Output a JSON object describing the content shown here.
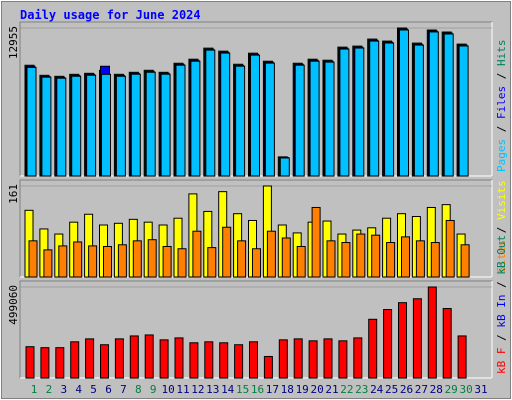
{
  "title": "Daily usage for June 2024",
  "legend_separator": " / ",
  "categories": [
    "1",
    "2",
    "3",
    "4",
    "5",
    "6",
    "7",
    "8",
    "9",
    "10",
    "11",
    "12",
    "13",
    "14",
    "15",
    "16",
    "17",
    "18",
    "19",
    "20",
    "21",
    "22",
    "23",
    "24",
    "25",
    "26",
    "27",
    "28",
    "29",
    "30",
    "31"
  ],
  "weekend_days": [
    "1",
    "2",
    "8",
    "9",
    "15",
    "16",
    "22",
    "23",
    "29",
    "30"
  ],
  "weekday_color": "#000080",
  "weekend_color": "#008040",
  "chart_data": [
    {
      "type": "bar",
      "ylim": [
        0,
        12955
      ],
      "yticks": [
        12955
      ],
      "series": [
        {
          "name": "Hits",
          "color": "#00805c",
          "values": [
            9694,
            8813,
            8725,
            8901,
            8989,
            9250,
            8901,
            9077,
            9254,
            9077,
            9870,
            10223,
            11192,
            10928,
            9782,
            10752,
            10047,
            1675,
            9870,
            10223,
            10135,
            11281,
            11369,
            11986,
            11810,
            12955,
            11634,
            12779,
            12603,
            11545,
            null
          ]
        },
        {
          "name": "Files",
          "color": "#0000ff",
          "values": [
            9600,
            8720,
            8640,
            8810,
            8900,
            9606,
            8810,
            8990,
            9160,
            8990,
            9780,
            10130,
            11100,
            10840,
            9690,
            10660,
            9960,
            1620,
            9780,
            10130,
            10050,
            11190,
            11280,
            11890,
            11720,
            12860,
            11540,
            12690,
            12510,
            11460,
            null
          ]
        },
        {
          "name": "Pages",
          "color": "#00c0ff",
          "values": [
            9500,
            8650,
            8560,
            8730,
            8820,
            8900,
            8730,
            8910,
            9080,
            8910,
            9700,
            10050,
            11020,
            10760,
            9610,
            10580,
            9880,
            1580,
            9700,
            10050,
            9970,
            11110,
            11200,
            11810,
            11640,
            12780,
            11460,
            12610,
            12430,
            11380,
            null
          ]
        }
      ]
    },
    {
      "type": "bar",
      "ylim": [
        0,
        161
      ],
      "yticks": [
        161
      ],
      "series": [
        {
          "name": "Visits",
          "color": "#ffff00",
          "values": [
            118,
            85,
            76,
            97,
            111,
            92,
            95,
            102,
            97,
            92,
            104,
            147,
            116,
            151,
            112,
            100,
            161,
            92,
            78,
            97,
            99,
            76,
            83,
            87,
            104,
            112,
            107,
            123,
            128,
            76,
            null
          ]
        },
        {
          "name": "Sites",
          "color": "#ff8000",
          "values": [
            64,
            48,
            55,
            62,
            55,
            54,
            57,
            64,
            66,
            54,
            50,
            81,
            52,
            88,
            64,
            50,
            81,
            69,
            54,
            123,
            64,
            61,
            76,
            74,
            61,
            71,
            64,
            61,
            100,
            57,
            null
          ]
        }
      ]
    },
    {
      "type": "bar",
      "ylim": [
        0,
        499060
      ],
      "yticks": [
        499060
      ],
      "series": [
        {
          "name": "kB Out",
          "color": "#00805c",
          "values": [
            null,
            null,
            null,
            null,
            null,
            null,
            null,
            null,
            null,
            null,
            null,
            null,
            null,
            null,
            null,
            null,
            null,
            null,
            null,
            null,
            null,
            null,
            null,
            null,
            null,
            null,
            null,
            null,
            null,
            null,
            null
          ]
        },
        {
          "name": "kB In",
          "color": "#0000ff",
          "values": [
            null,
            null,
            null,
            null,
            null,
            null,
            null,
            null,
            null,
            null,
            null,
            null,
            null,
            null,
            null,
            null,
            null,
            null,
            null,
            null,
            null,
            null,
            null,
            null,
            null,
            null,
            null,
            null,
            null,
            null,
            null
          ]
        },
        {
          "name": "kB F",
          "color": "#ff0000",
          "values": [
            171712,
            166346,
            166346,
            198542,
            214640,
            182444,
            214640,
            230738,
            236104,
            209274,
            220006,
            193176,
            198542,
            193176,
            182444,
            198542,
            118052,
            209274,
            214640,
            203908,
            214640,
            203908,
            220006,
            321960,
            375620,
            413182,
            434646,
            499060,
            380986,
            230738,
            null
          ]
        }
      ]
    }
  ]
}
